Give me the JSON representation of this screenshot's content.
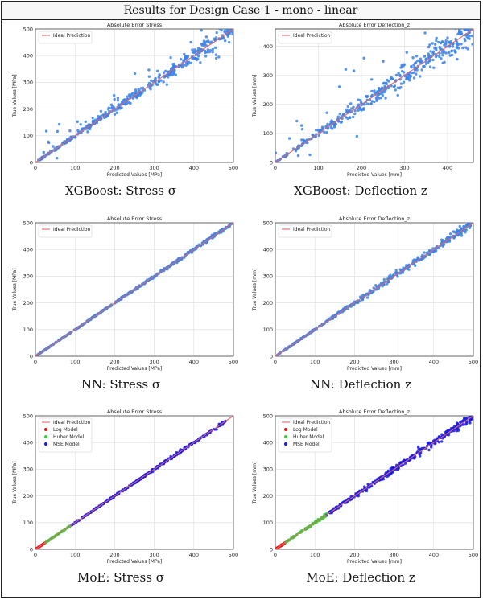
{
  "header": {
    "title": "Results for Design Case 1 - mono - linear"
  },
  "legend_labels": {
    "ideal": "Ideal Prediction",
    "log": "Log Model",
    "huber": "Huber Model",
    "mse": "MSE Model"
  },
  "colors": {
    "ideal": "#e06670",
    "points": "#3b82e6",
    "log": "#e81010",
    "huber": "#35d035",
    "mse": "#1a1ae6",
    "grid": "#dcdcdc"
  },
  "chart_data": [
    {
      "type": "scatter",
      "title": "Absolute Error Stress",
      "xlabel": "Predicted Values [MPa]",
      "ylabel": "True Values [MPa]",
      "caption": "XGBoost: Stress σ",
      "xlim": [
        0,
        500
      ],
      "ylim": [
        0,
        500
      ],
      "xticks": [
        0,
        100,
        200,
        300,
        400,
        500
      ],
      "yticks": [
        0,
        100,
        200,
        300,
        400,
        500
      ],
      "legend": [
        "Ideal Prediction"
      ],
      "legend_placement": "top-left",
      "grid": true,
      "spread": "wide",
      "series": [
        {
          "color": "#3b82e6",
          "x_range": [
            5,
            500
          ]
        }
      ]
    },
    {
      "type": "scatter",
      "title": "Absolute Error Deflection_z",
      "xlabel": "Predicted Values [mm]",
      "ylabel": "True Values [mm]",
      "caption": "XGBoost: Deflection z",
      "xlim": [
        0,
        460
      ],
      "ylim": [
        0,
        460
      ],
      "xticks": [
        0,
        100,
        200,
        300,
        400
      ],
      "yticks": [
        0,
        100,
        200,
        300,
        400
      ],
      "legend": [
        "Ideal Prediction"
      ],
      "legend_placement": "top-left",
      "grid": true,
      "spread": "very-wide",
      "series": [
        {
          "color": "#3b82e6",
          "x_range": [
            0,
            460
          ]
        }
      ]
    },
    {
      "type": "scatter",
      "title": "Absolute Error Stress",
      "xlabel": "Predicted Values [MPa]",
      "ylabel": "True Values [MPa]",
      "caption": "NN: Stress σ",
      "xlim": [
        0,
        500
      ],
      "ylim": [
        0,
        500
      ],
      "xticks": [
        0,
        100,
        200,
        300,
        400,
        500
      ],
      "yticks": [
        0,
        100,
        200,
        300,
        400,
        500
      ],
      "legend": [
        "Ideal Prediction"
      ],
      "legend_placement": "top-left",
      "grid": true,
      "spread": "tight",
      "series": [
        {
          "color": "#3b82e6",
          "x_range": [
            5,
            495
          ]
        }
      ]
    },
    {
      "type": "scatter",
      "title": "Absolute Error Deflection_z",
      "xlabel": "Predicted Values [mm]",
      "ylabel": "True Values [mm]",
      "caption": "NN: Deflection z",
      "xlim": [
        0,
        500
      ],
      "ylim": [
        0,
        500
      ],
      "xticks": [
        0,
        100,
        200,
        300,
        400,
        500
      ],
      "yticks": [
        0,
        100,
        200,
        300,
        400,
        500
      ],
      "legend": [
        "Ideal Prediction"
      ],
      "legend_placement": "top-left",
      "grid": true,
      "spread": "moderate",
      "series": [
        {
          "color": "#3b82e6",
          "x_range": [
            5,
            500
          ]
        }
      ]
    },
    {
      "type": "scatter",
      "title": "Absolute Error Stress",
      "xlabel": "Predicted Values [MPa]",
      "ylabel": "True Values [MPa]",
      "caption": "MoE: Stress σ",
      "xlim": [
        0,
        500
      ],
      "ylim": [
        0,
        500
      ],
      "xticks": [
        0,
        100,
        200,
        300,
        400,
        500
      ],
      "yticks": [
        0,
        100,
        200,
        300,
        400,
        500
      ],
      "legend": [
        "Ideal Prediction",
        "Log Model",
        "Huber Model",
        "MSE Model"
      ],
      "legend_placement": "top-left",
      "grid": true,
      "spread": "tight",
      "series": [
        {
          "name": "Log Model",
          "color": "#e81010",
          "x_range": [
            0,
            25
          ]
        },
        {
          "name": "Huber Model",
          "color": "#35d035",
          "x_range": [
            25,
            90
          ]
        },
        {
          "name": "MSE Model",
          "color": "#1a1ae6",
          "x_range": [
            90,
            480
          ]
        }
      ]
    },
    {
      "type": "scatter",
      "title": "Absolute Error Deflection_z",
      "xlabel": "Predicted Values [mm]",
      "ylabel": "True Values [mm]",
      "caption": "MoE: Deflection z",
      "xlim": [
        0,
        500
      ],
      "ylim": [
        0,
        500
      ],
      "xticks": [
        0,
        100,
        200,
        300,
        400,
        500
      ],
      "yticks": [
        0,
        100,
        200,
        300,
        400,
        500
      ],
      "legend": [
        "Ideal Prediction",
        "Log Model",
        "Huber Model",
        "MSE Model"
      ],
      "legend_placement": "top-left",
      "grid": true,
      "spread": "moderate",
      "series": [
        {
          "name": "Log Model",
          "color": "#e81010",
          "x_range": [
            0,
            25
          ]
        },
        {
          "name": "Huber Model",
          "color": "#35d035",
          "x_range": [
            25,
            130
          ]
        },
        {
          "name": "MSE Model",
          "color": "#1a1ae6",
          "x_range": [
            130,
            500
          ]
        }
      ]
    }
  ]
}
